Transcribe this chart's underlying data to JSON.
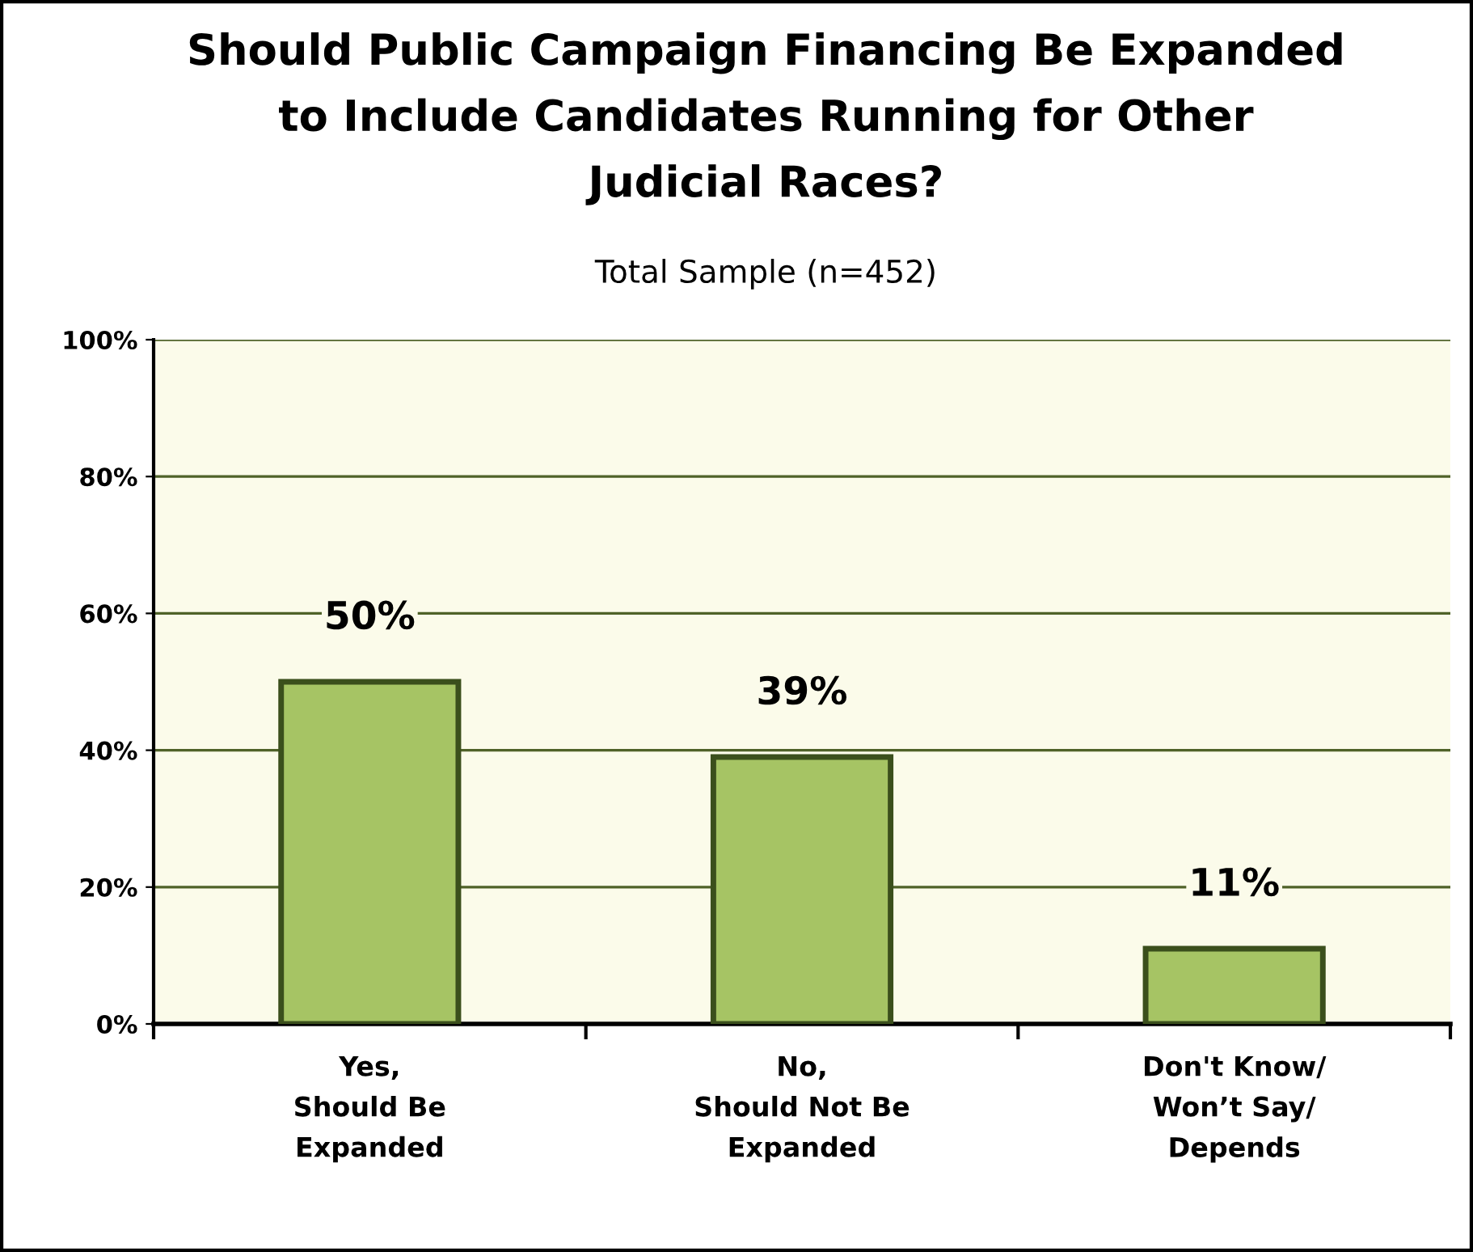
{
  "chart_data": {
    "type": "bar",
    "title": "Should Public Campaign Financing Be Expanded\nto Include Candidates Running for Other\nJudicial Races?",
    "subtitle": "Total Sample (n=452)",
    "categories": [
      "Yes,\nShould Be\nExpanded",
      "No,\nShould Not Be\nExpanded",
      "Don't Know/\nWon’t Say/\nDepends"
    ],
    "values": [
      50,
      39,
      11
    ],
    "value_labels": [
      "50%",
      "39%",
      "11%"
    ],
    "color": "#a6c464",
    "ylim": [
      0,
      100
    ],
    "yticks": [
      {
        "value": 0,
        "label": "0%"
      },
      {
        "value": 20,
        "label": "20%"
      },
      {
        "value": 40,
        "label": "40%"
      },
      {
        "value": 60,
        "label": "60%"
      },
      {
        "value": 80,
        "label": "80%"
      },
      {
        "value": 100,
        "label": "100%"
      }
    ],
    "grid": "y"
  }
}
